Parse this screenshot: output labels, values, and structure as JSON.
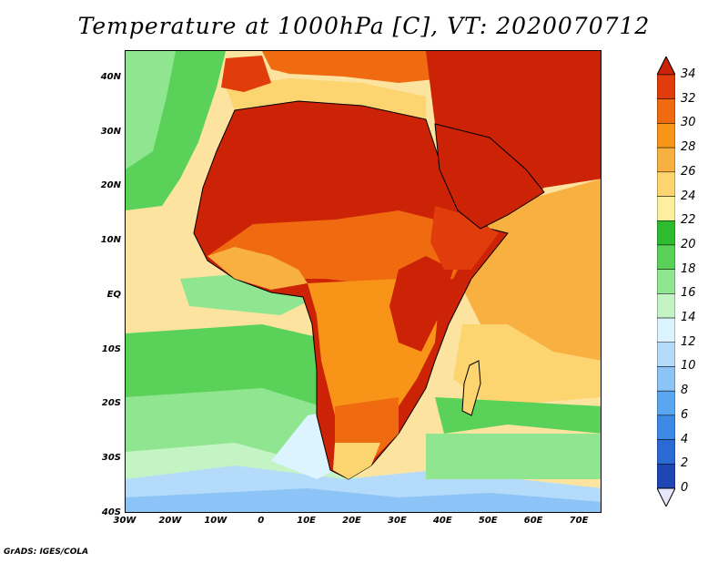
{
  "title": "Temperature at 1000hPa [C], VT: 2020070712",
  "credit": "GrADS: IGES/COLA",
  "map": {
    "lon_range": [
      -30,
      75
    ],
    "lat_range": [
      -40,
      45
    ],
    "lat_ticks": [
      {
        "value": 40,
        "label": "40N"
      },
      {
        "value": 30,
        "label": "30N"
      },
      {
        "value": 20,
        "label": "20N"
      },
      {
        "value": 10,
        "label": "10N"
      },
      {
        "value": 0,
        "label": "EQ"
      },
      {
        "value": -10,
        "label": "10S"
      },
      {
        "value": -20,
        "label": "20S"
      },
      {
        "value": -30,
        "label": "30S"
      },
      {
        "value": -40,
        "label": "40S"
      }
    ],
    "lon_ticks": [
      {
        "value": -30,
        "label": "30W"
      },
      {
        "value": -20,
        "label": "20W"
      },
      {
        "value": -10,
        "label": "10W"
      },
      {
        "value": 0,
        "label": "0"
      },
      {
        "value": 10,
        "label": "10E"
      },
      {
        "value": 20,
        "label": "20E"
      },
      {
        "value": 30,
        "label": "30E"
      },
      {
        "value": 40,
        "label": "40E"
      },
      {
        "value": 50,
        "label": "50E"
      },
      {
        "value": 60,
        "label": "60E"
      },
      {
        "value": 70,
        "label": "70E"
      }
    ]
  },
  "colorbar": {
    "labels": [
      "34",
      "32",
      "30",
      "28",
      "26",
      "24",
      "22",
      "20",
      "18",
      "16",
      "14",
      "12",
      "10",
      "8",
      "6",
      "4",
      "2",
      "0"
    ],
    "colors": [
      "#16166e",
      "#1e46b4",
      "#2a6ad2",
      "#3c8ae6",
      "#5aa6f0",
      "#8cc4f8",
      "#b4dcfa",
      "#dcf4ff",
      "#c4f4c4",
      "#90e690",
      "#5ad25a",
      "#2ebc2e",
      "#fcf0a0",
      "#fcd470",
      "#f8b040",
      "#f89418",
      "#f06a10",
      "#e03c0c",
      "#cc2206"
    ],
    "min_arrow_color": "#e6e6fa",
    "max_arrow_color": "#cc2206"
  }
}
